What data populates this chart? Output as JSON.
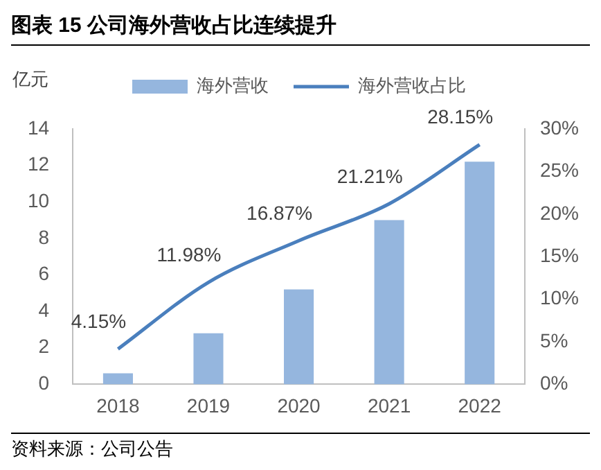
{
  "chart_data": {
    "type": "bar",
    "title": "图表 15 公司海外营收占比连续提升",
    "ylabel": "亿元",
    "categories": [
      "2018",
      "2019",
      "2020",
      "2021",
      "2022"
    ],
    "series": [
      {
        "name": "海外营收",
        "color": "#95b6de",
        "values": [
          0.6,
          2.8,
          5.2,
          9.0,
          12.2
        ]
      },
      {
        "name": "海外营收占比",
        "type": "line",
        "axis": "y2",
        "color": "#4a7fbd",
        "values": [
          4.15,
          11.98,
          16.87,
          21.21,
          28.15
        ],
        "value_labels": [
          "4.15%",
          "11.98%",
          "16.87%",
          "21.21%",
          "28.15%"
        ]
      }
    ],
    "ylim": [
      0,
      14
    ],
    "yticks": [
      0,
      2,
      4,
      6,
      8,
      10,
      12,
      14
    ],
    "y2lim": [
      0,
      30
    ],
    "y2ticks": [
      {
        "value": 0,
        "label": "0%"
      },
      {
        "value": 5,
        "label": "5%"
      },
      {
        "value": 10,
        "label": "10%"
      },
      {
        "value": 15,
        "label": "15%"
      },
      {
        "value": 20,
        "label": "20%"
      },
      {
        "value": 25,
        "label": "25%"
      },
      {
        "value": 30,
        "label": "30%"
      }
    ],
    "legend": "top",
    "marker": "none",
    "grid": false,
    "annotations": [
      "资料来源：公司公告"
    ]
  }
}
